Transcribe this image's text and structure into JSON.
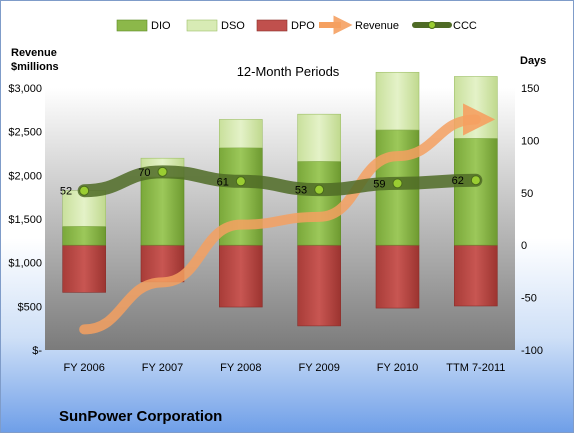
{
  "chart_data": {
    "type": "bar",
    "title": "12-Month Periods",
    "company": "SunPower Corporation",
    "categories": [
      "FY 2006",
      "FY 2007",
      "FY 2008",
      "FY 2009",
      "FY 2010",
      "TTM 7-2011"
    ],
    "left_axis": {
      "title_line1": "Revenue",
      "title_line2": "$millions",
      "ylim": [
        0,
        3000
      ],
      "ticks": [
        0,
        500,
        1000,
        1500,
        2000,
        2500,
        3000
      ],
      "tick_labels": [
        "$-",
        "$500",
        "$1,000",
        "$1,500",
        "$2,000",
        "$2,500",
        "$3,000"
      ]
    },
    "right_axis": {
      "title": "Days",
      "ylim": [
        -100,
        150
      ],
      "ticks": [
        -100,
        -50,
        0,
        50,
        100,
        150
      ],
      "tick_labels": [
        "-100",
        "-50",
        "0",
        "50",
        "100",
        "150"
      ]
    },
    "grid": false,
    "legend_position": "top",
    "series": [
      {
        "name": "DIO",
        "kind": "bar",
        "values": [
          18,
          65,
          93,
          80,
          110,
          102
        ],
        "color": "#8cb84a"
      },
      {
        "name": "DSO",
        "kind": "bar",
        "values": [
          34,
          18,
          27,
          45,
          55,
          59
        ],
        "color": "#d8ebb5"
      },
      {
        "name": "DPO",
        "kind": "bar",
        "values": [
          45,
          35,
          59,
          77,
          60,
          58
        ],
        "color": "#c0504d"
      },
      {
        "name": "Revenue",
        "kind": "line",
        "values": [
          236,
          775,
          1435,
          1525,
          2220,
          2640
        ],
        "color": "#f79646"
      },
      {
        "name": "CCC",
        "kind": "line",
        "values": [
          52,
          70,
          61,
          53,
          59,
          62
        ],
        "color": "#5e7d2e"
      }
    ],
    "ccc_labels": [
      "52",
      "70",
      "61",
      "53",
      "59",
      "62"
    ]
  }
}
